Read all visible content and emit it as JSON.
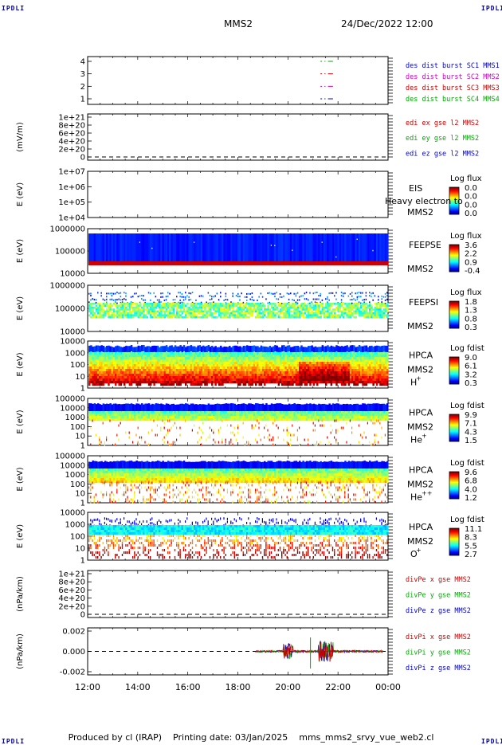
{
  "header": {
    "corner_label": "IPDLI",
    "mission": "MMS2",
    "datetime": "24/Dec/2022 12:00"
  },
  "footer": {
    "produced_by": "Produced by cl (IRAP)",
    "printing_date": "Printing date: 03/Jan/2025",
    "filename": "mms_mms2_srvy_vue_web2.cl"
  },
  "chart_data": [
    {
      "type": "line",
      "name": "burst flags",
      "yticks": [
        "1",
        "2",
        "3",
        "4"
      ],
      "ylim": [
        0.5,
        4.5
      ],
      "legend": [
        {
          "label": "des dist burst SC1 MMS1",
          "color": "#0000cc"
        },
        {
          "label": "des dist burst SC2 MMS2",
          "color": "#cc00cc"
        },
        {
          "label": "des dist burst SC3 MMS3",
          "color": "#cc0000"
        },
        {
          "label": "des dist burst SC4 MMS4",
          "color": "#00aa00"
        }
      ],
      "series": [
        {
          "y": 4,
          "color": "#00aa00",
          "x": [
            21.3,
            21.5,
            21.6,
            21.8
          ]
        },
        {
          "y": 3,
          "color": "#cc0000",
          "x": [
            21.3,
            21.5,
            21.6,
            21.8
          ]
        },
        {
          "y": 2,
          "color": "#cc00cc",
          "x": [
            21.3,
            21.5,
            21.6,
            21.8
          ]
        },
        {
          "y": 1,
          "color": "#0000cc",
          "x": [
            21.3,
            21.5,
            21.6,
            21.8
          ]
        }
      ]
    },
    {
      "type": "line",
      "name": "edi e field",
      "ylabel": "(mV/m)",
      "yticks": [
        "0",
        "2e+20",
        "4e+20",
        "6e+20",
        "8e+20",
        "1e+21"
      ],
      "ylim": [
        0,
        1e+21
      ],
      "legend": [
        {
          "label": "edi ex gse l2 MMS2",
          "color": "#cc0000"
        },
        {
          "label": "edi ey gse l2 MMS2",
          "color": "#00aa00"
        },
        {
          "label": "edi ez gse l2 MMS2",
          "color": "#0000cc"
        }
      ],
      "dashed_zero": true
    },
    {
      "type": "heatmap",
      "name": "EIS",
      "ylabel": "E (eV)",
      "yticks": [
        "1e+04",
        "1e+05",
        "1e+06",
        "1e+07"
      ],
      "labels": [
        "EIS",
        "MMS2"
      ],
      "overlay": "Heavy electron to",
      "cbar_title": "Log flux",
      "cbar_ticks": [
        "0.0",
        "0.0",
        "0.0",
        "0.0"
      ],
      "pattern": "empty"
    },
    {
      "type": "heatmap",
      "name": "FEEPSE",
      "ylabel": "E (eV)",
      "yticks": [
        "10000",
        "100000",
        "1000000"
      ],
      "labels": [
        "FEEPSE",
        "MMS2"
      ],
      "cbar_title": "Log flux",
      "cbar_ticks": [
        "3.6",
        "2.2",
        "0.9",
        "-0.4"
      ],
      "pattern": "feepse"
    },
    {
      "type": "heatmap",
      "name": "FEEPSI",
      "ylabel": "E (eV)",
      "yticks": [
        "10000",
        "100000",
        "1000000"
      ],
      "labels": [
        "FEEPSI",
        "MMS2"
      ],
      "cbar_title": "Log flux",
      "cbar_ticks": [
        "1.8",
        "1.3",
        "0.8",
        "0.3"
      ],
      "pattern": "feepsi"
    },
    {
      "type": "heatmap",
      "name": "HPCA H+",
      "ylabel": "E (eV)",
      "yticks": [
        "1",
        "10",
        "100",
        "1000",
        "10000"
      ],
      "labels": [
        "HPCA",
        "MMS2"
      ],
      "species": "H",
      "charge": "+",
      "cbar_title": "Log fdist",
      "cbar_ticks": [
        "9.0",
        "6.1",
        "3.2",
        "0.3"
      ],
      "pattern": "hplus"
    },
    {
      "type": "heatmap",
      "name": "HPCA He+",
      "ylabel": "E (eV)",
      "yticks": [
        "1",
        "10",
        "100",
        "1000",
        "10000",
        "100000"
      ],
      "labels": [
        "HPCA",
        "MMS2"
      ],
      "species": "He",
      "charge": "+",
      "cbar_title": "Log fdist",
      "cbar_ticks": [
        "9.9",
        "7.1",
        "4.3",
        "1.5"
      ],
      "pattern": "heplus"
    },
    {
      "type": "heatmap",
      "name": "HPCA He++",
      "ylabel": "E (eV)",
      "yticks": [
        "1",
        "10",
        "100",
        "1000",
        "10000",
        "100000"
      ],
      "labels": [
        "HPCA",
        "MMS2"
      ],
      "species": "He",
      "charge": "++",
      "cbar_title": "Log fdist",
      "cbar_ticks": [
        "9.6",
        "6.8",
        "4.0",
        "1.2"
      ],
      "pattern": "heplusplus"
    },
    {
      "type": "heatmap",
      "name": "HPCA O+",
      "ylabel": "E (eV)",
      "yticks": [
        "1",
        "10",
        "100",
        "1000",
        "10000"
      ],
      "labels": [
        "HPCA",
        "MMS2"
      ],
      "species": "O",
      "charge": "+",
      "cbar_title": "Log fdist",
      "cbar_ticks": [
        "11.1",
        "8.3",
        "5.5",
        "2.7"
      ],
      "pattern": "oplus"
    },
    {
      "type": "line",
      "name": "divPe",
      "ylabel": "(nPa/km)",
      "yticks": [
        "0",
        "2e+20",
        "4e+20",
        "6e+20",
        "8e+20",
        "1e+21"
      ],
      "ylim": [
        0,
        1e+21
      ],
      "legend": [
        {
          "label": "divPe x gse MMS2",
          "color": "#cc0000"
        },
        {
          "label": "divPe y gse MMS2",
          "color": "#00aa00"
        },
        {
          "label": "divPe z gse MMS2",
          "color": "#0000cc"
        }
      ],
      "dashed_zero": true
    },
    {
      "type": "line",
      "name": "divPi",
      "ylabel": "(nPa/km)",
      "yticks": [
        "-0.002",
        "0.000",
        "0.002"
      ],
      "ylim": [
        -0.0035,
        0.0035
      ],
      "legend": [
        {
          "label": "divPi x gse MMS2",
          "color": "#cc0000"
        },
        {
          "label": "divPi y gse MMS2",
          "color": "#00aa00"
        },
        {
          "label": "divPi z gse MMS2",
          "color": "#0000cc"
        }
      ],
      "dashed_zero": true,
      "data_start_hour": 18.7,
      "data_end_hour": 23.8
    }
  ],
  "xaxis": {
    "ticks": [
      "12:00",
      "14:00",
      "16:00",
      "18:00",
      "20:00",
      "22:00",
      "00:00"
    ],
    "range_hours": [
      12,
      24
    ]
  }
}
